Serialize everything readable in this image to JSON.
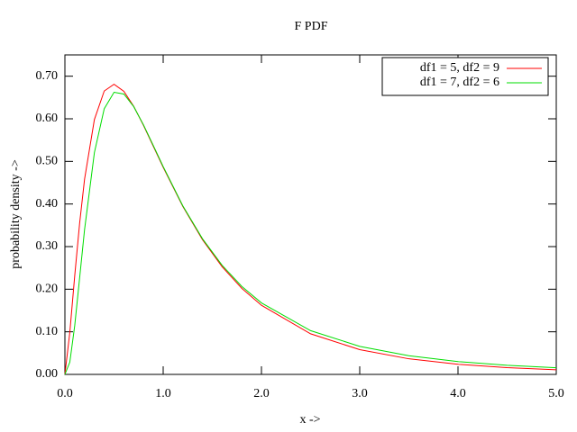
{
  "chart_data": {
    "type": "line",
    "title": "F PDF",
    "x_label": "x ->",
    "y_label": "probability density ->",
    "x": [
      0,
      0.05,
      0.1,
      0.15,
      0.2,
      0.3,
      0.4,
      0.5,
      0.6,
      0.7,
      0.8,
      0.9,
      1.0,
      1.2,
      1.4,
      1.6,
      1.8,
      2.0,
      2.5,
      3.0,
      3.5,
      4.0,
      4.5,
      5.0
    ],
    "series": [
      {
        "name": "df1 = 5, df2 = 9",
        "color": "#ff0000",
        "values": [
          0,
          0.0989,
          0.232,
          0.3554,
          0.4583,
          0.5983,
          0.6652,
          0.6811,
          0.6646,
          0.6293,
          0.5843,
          0.5353,
          0.486,
          0.3943,
          0.3162,
          0.2527,
          0.2021,
          0.1622,
          0.0953,
          0.0581,
          0.0366,
          0.0238,
          0.0159,
          0.0109
        ]
      },
      {
        "name": "df1 = 7, df2 = 6",
        "color": "#00dd00",
        "values": [
          0,
          0.0287,
          0.1147,
          0.2269,
          0.34,
          0.5207,
          0.6236,
          0.6623,
          0.6581,
          0.6286,
          0.5856,
          0.537,
          0.4879,
          0.3957,
          0.3184,
          0.256,
          0.2065,
          0.1678,
          0.1027,
          0.0658,
          0.0438,
          0.0302,
          0.0214,
          0.0156
        ]
      }
    ],
    "xlim": [
      0,
      5
    ],
    "ylim": [
      0,
      0.75
    ],
    "xticks": [
      {
        "value": 0,
        "label": "0.0"
      },
      {
        "value": 1,
        "label": "1.0"
      },
      {
        "value": 2,
        "label": "2.0"
      },
      {
        "value": 3,
        "label": "3.0"
      },
      {
        "value": 4,
        "label": "4.0"
      },
      {
        "value": 5,
        "label": "5.0"
      }
    ],
    "yticks": [
      {
        "value": 0,
        "label": "0.00"
      },
      {
        "value": 0.1,
        "label": "0.10"
      },
      {
        "value": 0.2,
        "label": "0.20"
      },
      {
        "value": 0.3,
        "label": "0.30"
      },
      {
        "value": 0.4,
        "label": "0.40"
      },
      {
        "value": 0.5,
        "label": "0.50"
      },
      {
        "value": 0.6,
        "label": "0.60"
      },
      {
        "value": 0.7,
        "label": "0.70"
      }
    ],
    "legend": "upper right",
    "grid": false
  }
}
